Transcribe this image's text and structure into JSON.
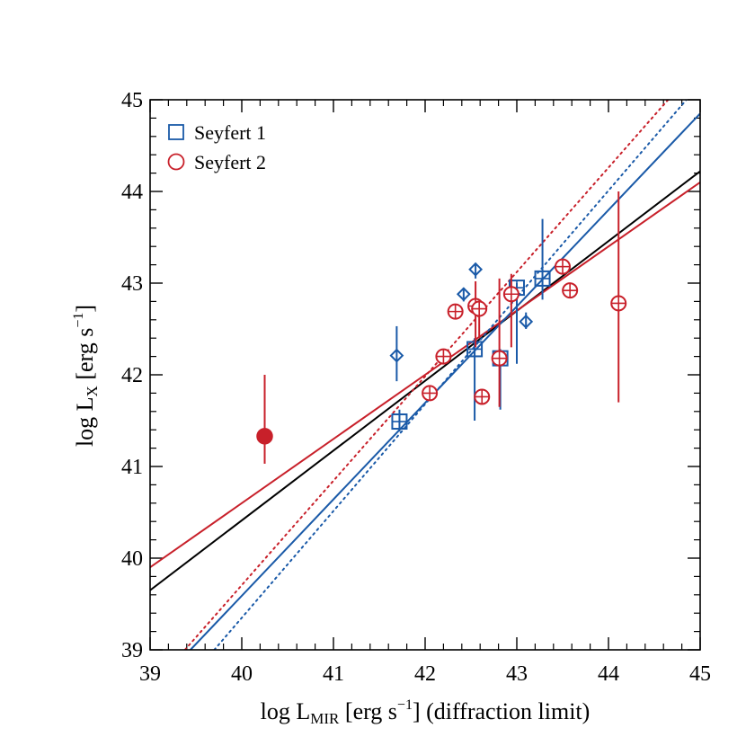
{
  "chart_data": {
    "type": "scatter",
    "xlim": [
      39,
      45
    ],
    "ylim": [
      39,
      45
    ],
    "xticks": [
      "39",
      "40",
      "41",
      "42",
      "43",
      "44",
      "45"
    ],
    "yticks": [
      "39",
      "40",
      "41",
      "42",
      "43",
      "44",
      "45"
    ],
    "xlabel": {
      "pre": "log L",
      "sub": "MIR",
      "post": " [erg s",
      "sup": "−1",
      "end": "] (diffraction limit)"
    },
    "ylabel": {
      "pre": "log L",
      "sub": "X",
      "post": " [erg s",
      "sup": "−1",
      "end": "]"
    },
    "legend": {
      "position": "top-left",
      "entries": [
        "Seyfert 1",
        "Seyfert 2"
      ]
    },
    "colors": {
      "seyfert1": "#1a5aa8",
      "seyfert2": "#c8202a",
      "fit": "#000000"
    },
    "seyfert1_squares": [
      {
        "x": 41.72,
        "y": 41.49,
        "ylo": 41.38,
        "yhi": 41.62
      },
      {
        "x": 42.54,
        "y": 42.28,
        "ylo": 41.5,
        "yhi": 42.4
      },
      {
        "x": 42.82,
        "y": 42.18,
        "ylo": 41.62,
        "yhi": 42.28
      },
      {
        "x": 43.0,
        "y": 42.95,
        "ylo": 42.12,
        "yhi": 43.0
      },
      {
        "x": 43.28,
        "y": 43.05,
        "ylo": 42.82,
        "yhi": 43.7
      }
    ],
    "seyfert1_diamonds": [
      {
        "x": 41.69,
        "y": 42.21,
        "ylo": 41.93,
        "yhi": 42.53
      },
      {
        "x": 42.42,
        "y": 42.88,
        "ylo": 42.8,
        "yhi": 42.95
      },
      {
        "x": 42.55,
        "y": 43.15,
        "ylo": 43.05,
        "yhi": 43.22
      },
      {
        "x": 43.1,
        "y": 42.58,
        "ylo": 42.5,
        "yhi": 42.68
      }
    ],
    "seyfert2_circles": [
      {
        "x": 42.05,
        "y": 41.8,
        "ylo": 41.75,
        "yhi": 41.85
      },
      {
        "x": 42.2,
        "y": 42.2,
        "ylo": 42.15,
        "yhi": 42.25
      },
      {
        "x": 42.33,
        "y": 42.69,
        "ylo": 42.64,
        "yhi": 42.74
      },
      {
        "x": 42.55,
        "y": 42.75,
        "ylo": 42.3,
        "yhi": 43.02
      },
      {
        "x": 42.59,
        "y": 42.72,
        "ylo": 42.4,
        "yhi": 42.8
      },
      {
        "x": 42.62,
        "y": 41.76,
        "ylo": 41.7,
        "yhi": 41.82
      },
      {
        "x": 42.81,
        "y": 42.18,
        "ylo": 41.65,
        "yhi": 43.05
      },
      {
        "x": 42.94,
        "y": 42.88,
        "ylo": 42.3,
        "yhi": 43.1
      },
      {
        "x": 43.5,
        "y": 43.18,
        "ylo": 43.12,
        "yhi": 43.25
      },
      {
        "x": 43.58,
        "y": 42.92,
        "ylo": 42.87,
        "yhi": 42.97
      },
      {
        "x": 44.11,
        "y": 42.78,
        "ylo": 41.7,
        "yhi": 44.0
      }
    ],
    "seyfert2_filled": {
      "x": 40.25,
      "y": 41.33,
      "ylo": 41.03,
      "yhi": 42.0
    },
    "lines": [
      {
        "style": "solid",
        "color": "black",
        "x": [
          39,
          45
        ],
        "y": [
          39.65,
          44.22
        ]
      },
      {
        "style": "solid",
        "color": "red",
        "x": [
          39,
          45
        ],
        "y": [
          39.9,
          44.1
        ]
      },
      {
        "style": "solid",
        "color": "blue",
        "x": [
          39.44,
          45
        ],
        "y": [
          39.0,
          44.85
        ]
      },
      {
        "style": "dotted",
        "color": "red",
        "x": [
          39.38,
          44.65
        ],
        "y": [
          39.0,
          45.0
        ]
      },
      {
        "style": "dotted",
        "color": "blue",
        "x": [
          39.7,
          44.85
        ],
        "y": [
          39.0,
          45.0
        ]
      }
    ]
  }
}
